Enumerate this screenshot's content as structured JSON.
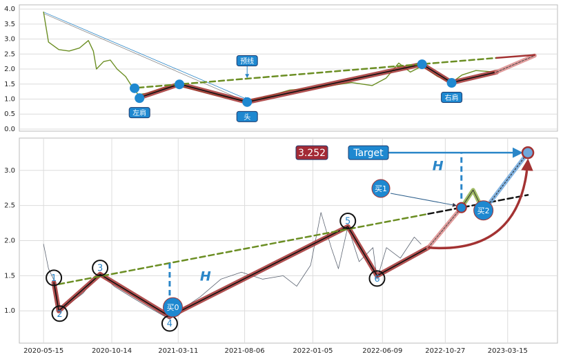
{
  "chart_data": [
    {
      "type": "line",
      "color": "#6b8e23",
      "x": [
        "2019-11-19",
        "2019-11-30",
        "2019-12-23",
        "2020-01-15",
        "2020-02-07",
        "2020-02-27",
        "2020-03-09",
        "2020-03-16",
        "2020-04-01",
        "2020-04-16",
        "2020-05-01",
        "2020-05-20",
        "2020-06-04",
        "2020-06-17",
        "2020-07-10",
        "2020-08-09",
        "2020-09-09",
        "2020-10-10",
        "2020-11-17",
        "2021-01-02",
        "2021-02-15",
        "2021-04-05",
        "2021-05-21",
        "2021-07-06",
        "2021-08-21",
        "2021-10-06",
        "2021-11-21",
        "2021-12-22",
        "2022-01-19",
        "2022-02-14",
        "2022-03-12",
        "2022-04-16",
        "2022-05-17",
        "2022-06-09",
        "2022-07-10",
        "2022-08-25"
      ],
      "values": [
        3.9,
        2.9,
        2.65,
        2.6,
        2.7,
        2.95,
        2.6,
        2.0,
        2.25,
        2.3,
        2.0,
        1.75,
        1.4,
        1.15,
        1.2,
        1.35,
        1.45,
        1.35,
        1.2,
        1.05,
        0.95,
        1.1,
        1.3,
        1.35,
        1.45,
        1.55,
        1.45,
        1.7,
        2.2,
        1.9,
        2.1,
        1.75,
        1.55,
        1.8,
        1.95,
        1.9
      ],
      "xlim": [
        "2019-09-26",
        "2023-01-08"
      ],
      "ylim": [
        -0.07,
        4.14
      ],
      "yticks": [
        {
          "value": 0,
          "label": "0.0"
        },
        0.5,
        {
          "value": 1,
          "label": "1.0"
        },
        1.5,
        {
          "value": 2,
          "label": "2.0"
        },
        2.5,
        {
          "value": 3,
          "label": "3.0"
        },
        3.5,
        {
          "value": 4,
          "label": "4.0"
        }
      ],
      "grid": true,
      "pattern": {
        "x": [
          "2020-06-20",
          "2020-09-17",
          "2021-02-15",
          "2022-03-12",
          "2022-05-17",
          "2022-08-25"
        ],
        "values": [
          1.05,
          1.5,
          0.9,
          2.16,
          1.55,
          1.9
        ]
      },
      "projection": {
        "x": [
          "2022-08-25",
          "2022-11-18"
        ],
        "values": [
          1.9,
          2.45
        ]
      },
      "neckline": {
        "x": [
          "2020-06-17",
          "2022-08-25"
        ],
        "values": [
          1.38,
          2.37
        ]
      },
      "neckline_extension": {
        "x": [
          "2022-08-25",
          "2022-11-18"
        ],
        "values": [
          2.37,
          2.47
        ]
      },
      "key_points": {
        "x": [
          "2020-06-09",
          "2020-06-20",
          "2020-09-17",
          "2021-02-15",
          "2022-03-12",
          "2022-05-17"
        ],
        "values": [
          1.36,
          1.03,
          1.49,
          0.9,
          2.16,
          1.54
        ]
      },
      "labels": [
        "左肩",
        "头",
        "右肩"
      ],
      "neckline_label": "预线"
    },
    {
      "type": "line",
      "color": "#5a6270",
      "x": [
        "2020-05-15",
        "2020-05-26",
        "2020-06-10",
        "2020-06-18",
        "2020-07-11",
        "2020-08-11",
        "2020-09-18",
        "2020-10-19",
        "2020-11-26",
        "2021-01-04",
        "2021-02-20",
        "2021-03-14",
        "2021-04-29",
        "2021-06-14",
        "2021-07-30",
        "2021-09-15",
        "2021-10-31",
        "2021-11-30",
        "2021-12-31",
        "2022-01-23",
        "2022-02-15",
        "2022-03-03",
        "2022-03-24",
        "2022-04-18",
        "2022-05-19",
        "2022-05-28",
        "2022-06-18",
        "2022-07-19",
        "2022-08-19",
        "2022-09-03"
      ],
      "values": [
        1.95,
        1.6,
        1.4,
        1.0,
        1.1,
        1.25,
        1.55,
        1.35,
        1.2,
        1.05,
        0.88,
        1.0,
        1.2,
        1.45,
        1.55,
        1.45,
        1.5,
        1.35,
        1.65,
        2.4,
        1.9,
        1.6,
        2.2,
        1.7,
        1.9,
        1.45,
        1.9,
        1.75,
        2.05,
        1.95
      ],
      "xlim": [
        "2020-03-22",
        "2023-07-04"
      ],
      "ylim": [
        0.54,
        3.46
      ],
      "xticks": [
        "2020-05-15",
        "2020-10-14",
        "2021-03-11",
        "2021-08-06",
        "2022-01-05",
        "2022-06-09",
        "2022-10-27",
        "2023-03-15"
      ],
      "yticks": [
        {
          "value": 1,
          "label": "1.0"
        },
        1.5,
        {
          "value": 2,
          "label": "2.0"
        },
        2.5,
        {
          "value": 3,
          "label": "3.0"
        }
      ],
      "grid": true,
      "pattern": {
        "x": [
          "2020-06-07",
          "2020-06-18",
          "2020-09-18",
          "2021-02-20",
          "2022-03-24",
          "2022-05-28",
          "2022-09-19"
        ],
        "values": [
          1.4,
          1.0,
          1.52,
          0.92,
          2.2,
          1.5,
          1.9
        ]
      },
      "projection": {
        "x": [
          "2022-09-19",
          "2022-12-02"
        ],
        "values": [
          1.9,
          2.47
        ]
      },
      "neckline": {
        "x": [
          "2020-06-18",
          "2022-09-19"
        ],
        "values": [
          1.38,
          2.38
        ]
      },
      "neckline_extension": {
        "x": [
          "2022-09-19",
          "2023-04-29"
        ],
        "values": [
          2.38,
          2.65
        ]
      },
      "points": {
        "labels": [
          "1",
          "2",
          "3",
          "4",
          "5",
          "6"
        ],
        "x": [
          "2020-06-07",
          "2020-06-20",
          "2020-09-18",
          "2021-02-20",
          "2022-03-24",
          "2022-05-28"
        ],
        "values": [
          1.47,
          0.96,
          1.61,
          0.82,
          2.28,
          1.46
        ]
      },
      "retest": {
        "x": [
          "2022-12-02",
          "2022-12-28",
          "2023-01-20"
        ],
        "values": [
          2.47,
          2.72,
          2.42
        ]
      },
      "buy_points": {
        "labels": [
          "买0",
          "买1",
          "买2"
        ],
        "x": [
          "2021-02-27",
          "2022-12-02",
          "2023-01-20"
        ],
        "values": [
          1.05,
          2.47,
          2.43
        ]
      },
      "target": {
        "label": "Target",
        "x": "2023-04-29",
        "value": 3.252
      },
      "height_label": "H"
    }
  ]
}
